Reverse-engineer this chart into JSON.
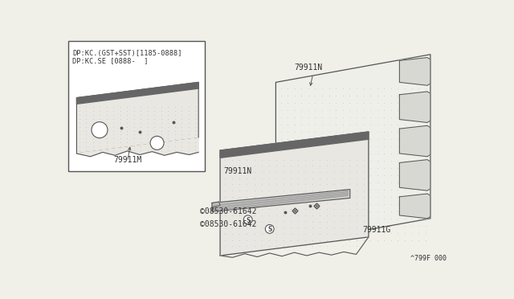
{
  "bg_color": "#f0efe8",
  "line_color": "#555555",
  "text_color": "#333333",
  "diagram_code": "^799F 000",
  "box_label1": "DP:KC.(GST+SST)[1185-0888]",
  "box_label2": "DP:KC.SE [0888-  ]",
  "labels": {
    "79911M_inset": "79911M",
    "79911N_top": "79911N",
    "79911N_strip": "79911N",
    "79911G": "79911G",
    "bolt1": "©08530-61642",
    "bolt2": "©08530-61642"
  },
  "dot_color": "#c0bfba"
}
